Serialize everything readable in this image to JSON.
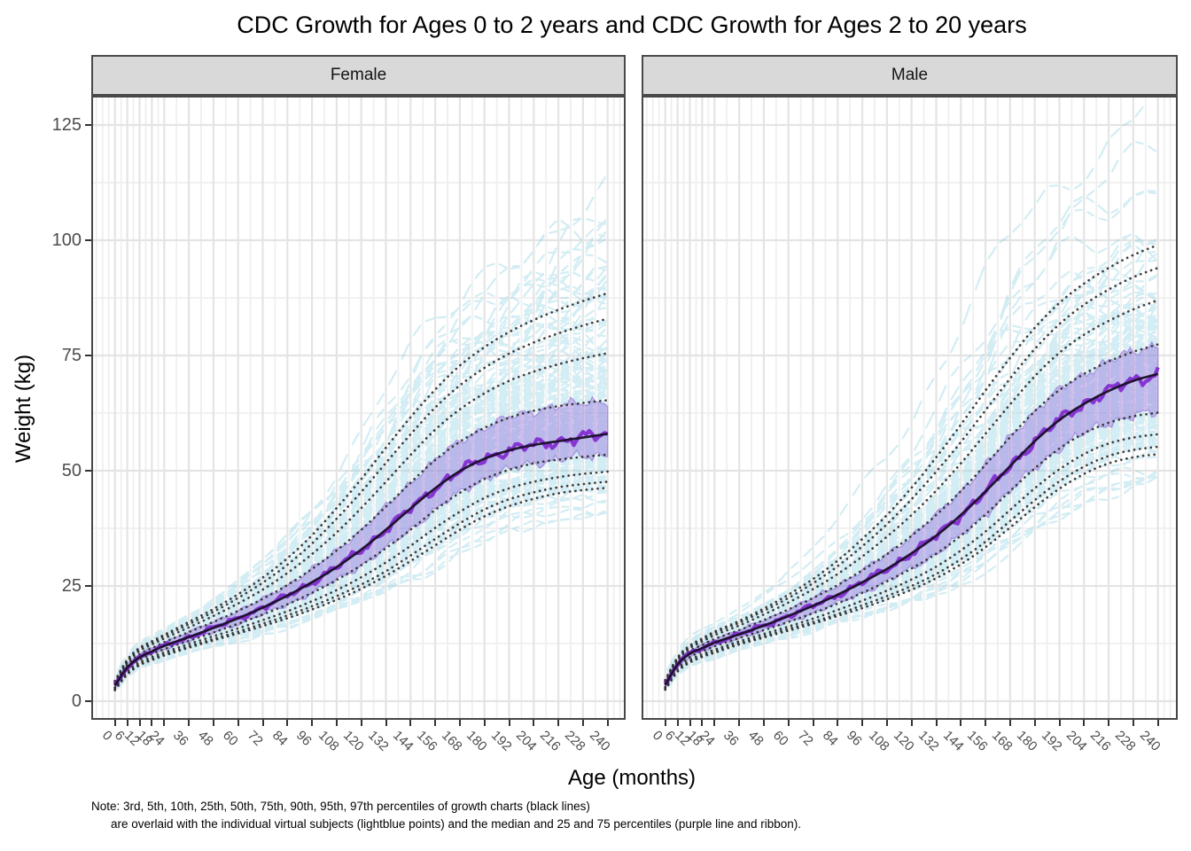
{
  "title": "CDC Growth for Ages 0 to 2 years and CDC Growth for Ages 2 to 20 years",
  "axes": {
    "x_label": "Age (months)",
    "y_label": "Weight (kg)",
    "x_ticks": [
      0,
      6,
      12,
      18,
      24,
      36,
      48,
      60,
      72,
      84,
      96,
      108,
      120,
      132,
      144,
      156,
      168,
      180,
      192,
      204,
      216,
      228,
      240
    ],
    "y_ticks": [
      0,
      25,
      50,
      75,
      100,
      125
    ],
    "y_minor": [
      12.5,
      37.5,
      62.5,
      87.5,
      112.5
    ],
    "ylim": [
      -4.0,
      131.3
    ],
    "xlim": [
      -11.5,
      249.0
    ]
  },
  "note": {
    "line1": "Note: 3rd, 5th, 10th, 25th, 50th, 75th, 90th, 95th, 97th percentiles of growth charts (black lines)",
    "line2": "are overlaid with the individual virtual subjects (lightblue points) and the median and 25 and 75 percentiles (purple line and ribbon)."
  },
  "colors": {
    "strip_fill": "#d9d9d9",
    "panel_border": "#474747",
    "grid_major": "#e4e4e4",
    "grid_minor": "#efefef",
    "percentile_dotted": "#2e2e2e",
    "median_smooth": "#191028",
    "median_purple": "#7e22ce",
    "ribbon_fill": "rgba(147,112,219,0.42)",
    "ribbon_edge": "rgba(140,100,215,0.55)",
    "scatter_blue": "#8ccfe1",
    "tick_text": "#4d4d4d"
  },
  "chart_data": [
    {
      "type": "line",
      "facet": "Female",
      "ages_months": [
        0,
        6,
        12,
        18,
        24,
        36,
        48,
        60,
        72,
        84,
        96,
        108,
        120,
        132,
        144,
        156,
        168,
        180,
        192,
        204,
        216,
        228,
        240
      ],
      "percentile_labels": [
        "3rd",
        "5th",
        "10th",
        "25th",
        "50th",
        "75th",
        "90th",
        "95th",
        "97th"
      ],
      "percentiles": {
        "p3": [
          2.4,
          5.8,
          7.8,
          8.9,
          9.9,
          11.6,
          13.2,
          14.7,
          16.3,
          18.0,
          19.9,
          22.0,
          24.4,
          27.2,
          30.4,
          33.8,
          37.2,
          40.1,
          42.3,
          43.9,
          45.1,
          45.8,
          46.3
        ],
        "p5": [
          2.5,
          6.0,
          8.0,
          9.2,
          10.2,
          11.9,
          13.5,
          15.1,
          16.8,
          18.6,
          20.6,
          22.8,
          25.3,
          28.2,
          31.6,
          35.2,
          38.6,
          41.6,
          43.8,
          45.3,
          46.4,
          47.1,
          47.6
        ],
        "p10": [
          2.8,
          6.4,
          8.4,
          9.6,
          10.6,
          12.4,
          14.1,
          15.8,
          17.6,
          19.5,
          21.7,
          24.1,
          26.9,
          30.1,
          33.7,
          37.6,
          41.1,
          44.1,
          46.2,
          47.6,
          48.6,
          49.3,
          49.8
        ],
        "p25": [
          3.0,
          6.8,
          9.0,
          10.2,
          11.3,
          13.1,
          14.9,
          16.8,
          18.8,
          21.0,
          23.5,
          26.3,
          29.5,
          33.2,
          37.2,
          41.5,
          45.2,
          48.2,
          50.2,
          51.6,
          52.4,
          53.0,
          53.5
        ],
        "p50": [
          3.4,
          7.3,
          9.5,
          10.8,
          12.0,
          13.9,
          15.9,
          18.0,
          20.3,
          22.9,
          25.8,
          29.1,
          32.9,
          37.2,
          41.8,
          46.2,
          49.9,
          52.6,
          54.4,
          55.6,
          56.4,
          57.2,
          58.0
        ],
        "p75": [
          3.7,
          7.9,
          10.2,
          11.5,
          12.8,
          15.0,
          17.2,
          19.6,
          22.2,
          25.2,
          28.7,
          32.7,
          37.2,
          42.2,
          47.4,
          52.3,
          56.3,
          59.3,
          61.5,
          63.0,
          64.0,
          64.7,
          65.3
        ],
        "p90": [
          4.0,
          8.4,
          10.9,
          12.3,
          13.6,
          16.0,
          18.5,
          21.2,
          24.2,
          27.8,
          31.9,
          36.6,
          41.9,
          47.6,
          53.4,
          58.9,
          63.3,
          66.8,
          69.5,
          71.5,
          73.1,
          74.4,
          75.5
        ],
        "p95": [
          4.2,
          8.7,
          11.3,
          12.7,
          14.1,
          16.7,
          19.4,
          22.4,
          25.7,
          29.6,
          34.2,
          39.6,
          45.4,
          51.7,
          57.9,
          63.7,
          68.5,
          72.3,
          75.4,
          77.8,
          79.8,
          81.5,
          83.0
        ],
        "p97": [
          4.4,
          9.0,
          11.6,
          13.0,
          14.4,
          17.2,
          20.0,
          23.2,
          26.8,
          31.0,
          36.0,
          41.9,
          48.2,
          55.0,
          61.6,
          67.6,
          72.8,
          76.8,
          80.1,
          82.7,
          84.9,
          86.8,
          88.5
        ]
      }
    },
    {
      "type": "line",
      "facet": "Male",
      "ages_months": [
        0,
        6,
        12,
        18,
        24,
        36,
        48,
        60,
        72,
        84,
        96,
        108,
        120,
        132,
        144,
        156,
        168,
        180,
        192,
        204,
        216,
        228,
        240
      ],
      "percentile_labels": [
        "3rd",
        "5th",
        "10th",
        "25th",
        "50th",
        "75th",
        "90th",
        "95th",
        "97th"
      ],
      "percentiles": {
        "p3": [
          2.5,
          6.4,
          8.4,
          9.6,
          10.5,
          12.3,
          13.8,
          15.3,
          16.8,
          18.5,
          20.2,
          22.1,
          24.2,
          26.7,
          29.7,
          33.4,
          37.7,
          42.1,
          46.1,
          49.3,
          51.6,
          52.9,
          53.6
        ],
        "p5": [
          2.6,
          6.6,
          8.6,
          9.8,
          10.8,
          12.6,
          14.1,
          15.7,
          17.2,
          18.9,
          20.8,
          22.8,
          25.0,
          27.6,
          30.8,
          34.6,
          39.1,
          43.6,
          47.7,
          50.9,
          53.2,
          54.5,
          55.2
        ],
        "p10": [
          2.9,
          7.0,
          9.0,
          10.2,
          11.2,
          13.0,
          14.6,
          16.2,
          17.9,
          19.8,
          21.8,
          24.0,
          26.4,
          29.2,
          32.7,
          36.8,
          41.5,
          46.2,
          50.3,
          53.6,
          55.9,
          57.2,
          57.9
        ],
        "p25": [
          3.1,
          7.5,
          9.6,
          10.8,
          11.9,
          13.7,
          15.4,
          17.2,
          19.1,
          21.2,
          23.5,
          26.0,
          28.8,
          32.0,
          35.9,
          40.5,
          45.6,
          50.5,
          54.8,
          58.1,
          60.4,
          61.8,
          62.6
        ],
        "p50": [
          3.5,
          8.0,
          10.3,
          11.5,
          12.7,
          14.5,
          16.4,
          18.5,
          20.7,
          23.1,
          25.8,
          28.7,
          32.1,
          35.9,
          40.4,
          45.5,
          51.0,
          56.4,
          61.0,
          64.5,
          67.3,
          69.5,
          71.0
        ],
        "p75": [
          3.9,
          8.5,
          10.9,
          12.2,
          13.5,
          15.4,
          17.6,
          19.9,
          22.4,
          25.2,
          28.4,
          31.9,
          35.9,
          40.4,
          45.6,
          51.3,
          57.3,
          62.9,
          67.5,
          71.0,
          73.7,
          75.8,
          77.4
        ],
        "p90": [
          4.2,
          9.0,
          11.5,
          12.9,
          14.3,
          16.4,
          18.8,
          21.4,
          24.3,
          27.6,
          31.4,
          35.7,
          40.4,
          45.7,
          51.6,
          58.0,
          64.4,
          70.5,
          75.6,
          79.5,
          82.5,
          85.0,
          87.0
        ],
        "p95": [
          4.4,
          9.3,
          11.8,
          13.3,
          14.8,
          17.0,
          19.6,
          22.4,
          25.6,
          29.3,
          33.6,
          38.4,
          43.8,
          49.8,
          56.2,
          63.1,
          70.0,
          76.4,
          81.8,
          86.0,
          89.3,
          92.0,
          94.0
        ],
        "p97": [
          4.6,
          9.5,
          12.1,
          13.6,
          15.1,
          17.4,
          20.1,
          23.1,
          26.5,
          30.5,
          35.2,
          40.4,
          46.3,
          52.9,
          60.0,
          67.4,
          74.5,
          81.0,
          86.4,
          90.6,
          94.0,
          96.8,
          99.0
        ]
      }
    }
  ]
}
